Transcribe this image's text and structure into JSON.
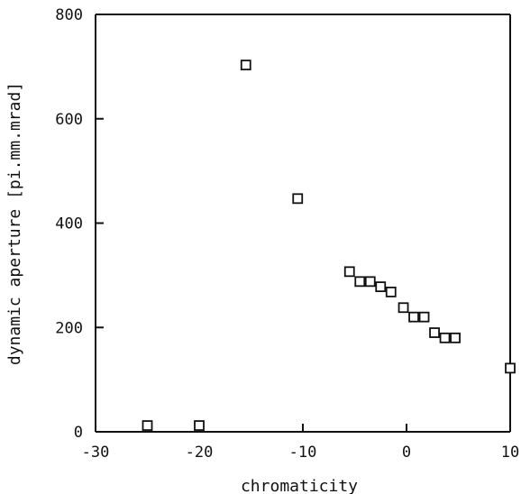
{
  "chart_data": {
    "type": "scatter",
    "title": "",
    "xlabel": "chromaticity",
    "ylabel": "dynamic aperture [pi.mm.mrad]",
    "xlim": [
      -30,
      10
    ],
    "ylim": [
      0,
      800
    ],
    "xticks": [
      -30,
      -20,
      -10,
      0,
      10
    ],
    "yticks": [
      0,
      200,
      400,
      600,
      800
    ],
    "grid": false,
    "legend": "none",
    "marker": "hollow-square",
    "series": [
      {
        "points": [
          {
            "x": -25,
            "y": 12
          },
          {
            "x": -20,
            "y": 12
          },
          {
            "x": -15.5,
            "y": 703
          },
          {
            "x": -10.5,
            "y": 447
          },
          {
            "x": -5.5,
            "y": 307
          },
          {
            "x": -4.5,
            "y": 288
          },
          {
            "x": -3.5,
            "y": 288
          },
          {
            "x": -2.5,
            "y": 278
          },
          {
            "x": -1.5,
            "y": 268
          },
          {
            "x": -0.3,
            "y": 238
          },
          {
            "x": 0.7,
            "y": 220
          },
          {
            "x": 1.7,
            "y": 220
          },
          {
            "x": 2.7,
            "y": 190
          },
          {
            "x": 3.7,
            "y": 180
          },
          {
            "x": 4.7,
            "y": 180
          },
          {
            "x": 10,
            "y": 122
          }
        ]
      }
    ]
  }
}
